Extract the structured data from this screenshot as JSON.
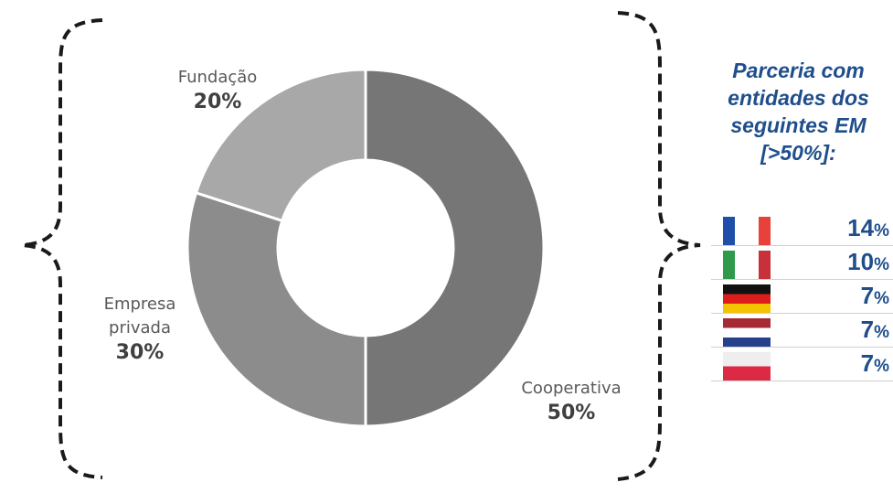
{
  "chart_data": {
    "type": "pie",
    "style": "donut",
    "categories": [
      "Cooperativa",
      "Empresa privada",
      "Fundação"
    ],
    "label_lines": [
      [
        "Cooperativa"
      ],
      [
        "Empresa",
        "privada"
      ],
      [
        "Fundação"
      ]
    ],
    "values": [
      50,
      30,
      20
    ],
    "value_labels": [
      "50%",
      "30%",
      "20%"
    ],
    "colors": [
      "#767676",
      "#8c8c8c",
      "#a8a8a8"
    ]
  },
  "panel": {
    "title_lines": [
      "Parceria com",
      "entidades dos",
      "seguintes EM",
      "[>50%]:"
    ],
    "title_color": "#1f4e8c",
    "countries": [
      {
        "flag": "france-flag",
        "value": "14",
        "unit": "%"
      },
      {
        "flag": "italy-flag",
        "value": "10",
        "unit": "%"
      },
      {
        "flag": "germany-flag",
        "value": "7",
        "unit": "%"
      },
      {
        "flag": "netherlands-flag",
        "value": "7",
        "unit": "%"
      },
      {
        "flag": "poland-flag",
        "value": "7",
        "unit": "%"
      }
    ]
  }
}
